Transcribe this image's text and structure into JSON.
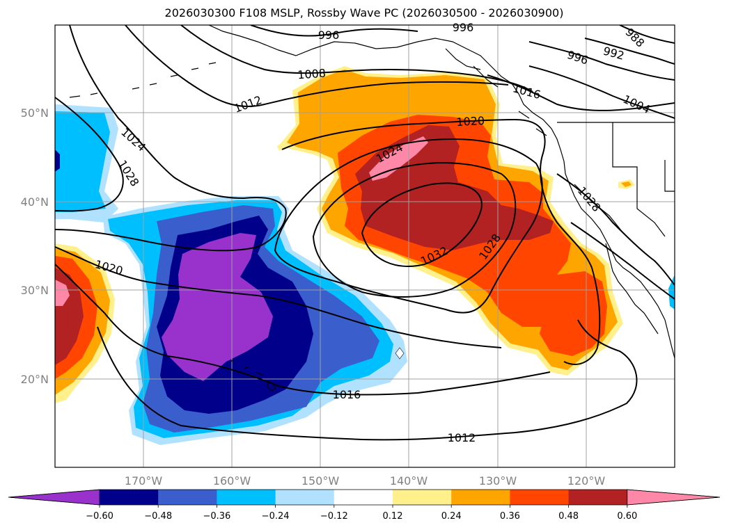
{
  "title": "2026030300 F108 MSLP, Rossby Wave PC (2026030500 - 2026030900)",
  "map": {
    "lat_labels": [
      "50°N",
      "40°N",
      "30°N",
      "20°N"
    ],
    "lon_labels": [
      "170°W",
      "160°W",
      "150°W",
      "140°W",
      "130°W",
      "120°W"
    ],
    "isobar_labels": [
      "1024",
      "1028",
      "1020",
      "1012",
      "1008",
      "996",
      "996",
      "992",
      "988",
      "996",
      "1016",
      "1004",
      "1020",
      "1024",
      "1032",
      "1028",
      "1028",
      "1016",
      "1012"
    ],
    "colors": {
      "purple": "#9932cc",
      "navy": "#00008b",
      "royal": "#3a5fcd",
      "cyan": "#00bfff",
      "lightblue": "#b0e2ff",
      "white": "#ffffff",
      "yellow": "#fff08c",
      "orange": "#ffa500",
      "redorange": "#ff4500",
      "crimson": "#b22222",
      "pink": "#ff87a8"
    }
  },
  "colorbar": {
    "ticks": [
      "−0.60",
      "−0.48",
      "−0.36",
      "−0.24",
      "−0.12",
      "0.12",
      "0.24",
      "0.36",
      "0.48",
      "0.60"
    ],
    "colors": [
      "#9932cc",
      "#00008b",
      "#3a5fcd",
      "#00bfff",
      "#b0e2ff",
      "#ffffff",
      "#fff08c",
      "#ffa500",
      "#ff4500",
      "#b22222",
      "#ff87a8"
    ]
  }
}
